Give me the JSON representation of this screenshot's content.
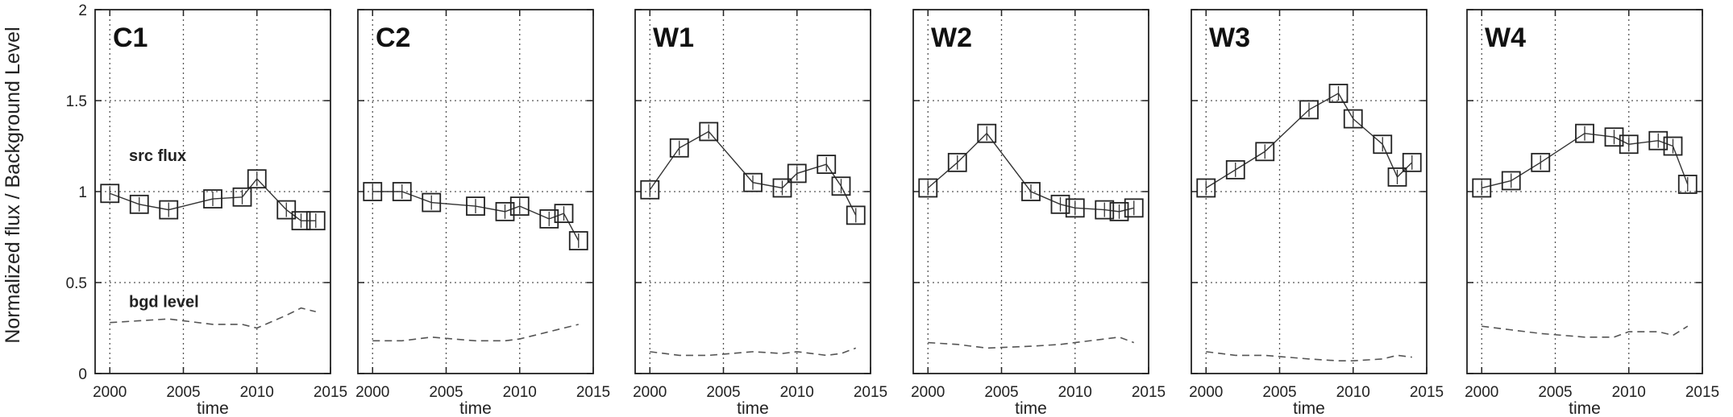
{
  "chart_data": {
    "type": "line",
    "ylabel": "Normalized flux / Background Level",
    "ylim": [
      0,
      2
    ],
    "y_ticks": [
      "0",
      "0.5",
      "1",
      "1.5",
      "2"
    ],
    "xlim": [
      1999,
      2015
    ],
    "x_ticks": [
      "2000",
      "2005",
      "2010",
      "2015"
    ],
    "grid": true,
    "annotations": [
      "src flux",
      "bgd level"
    ],
    "panels": [
      {
        "label": "C1",
        "xlabel": "time",
        "src_flux": {
          "x": [
            2000,
            2002,
            2004,
            2007,
            2009,
            2010,
            2012,
            2013,
            2014
          ],
          "y": [
            0.99,
            0.93,
            0.9,
            0.96,
            0.97,
            1.07,
            0.9,
            0.84,
            0.84
          ]
        },
        "bgd_level": {
          "x": [
            2000,
            2002,
            2004,
            2007,
            2009,
            2010,
            2012,
            2013,
            2014
          ],
          "y": [
            0.28,
            0.29,
            0.3,
            0.27,
            0.27,
            0.25,
            0.32,
            0.36,
            0.34
          ]
        }
      },
      {
        "label": "C2",
        "xlabel": "time",
        "src_flux": {
          "x": [
            2000,
            2002,
            2004,
            2007,
            2009,
            2010,
            2012,
            2013,
            2014
          ],
          "y": [
            1.0,
            1.0,
            0.94,
            0.92,
            0.89,
            0.92,
            0.85,
            0.88,
            0.73
          ]
        },
        "bgd_level": {
          "x": [
            2000,
            2002,
            2004,
            2007,
            2009,
            2010,
            2012,
            2013,
            2014
          ],
          "y": [
            0.18,
            0.18,
            0.2,
            0.18,
            0.18,
            0.19,
            0.23,
            0.25,
            0.27
          ]
        }
      },
      {
        "label": "W1",
        "xlabel": "time",
        "src_flux": {
          "x": [
            2000,
            2002,
            2004,
            2007,
            2009,
            2010,
            2012,
            2013,
            2014
          ],
          "y": [
            1.01,
            1.24,
            1.33,
            1.05,
            1.02,
            1.1,
            1.15,
            1.03,
            0.87
          ]
        },
        "bgd_level": {
          "x": [
            2000,
            2002,
            2004,
            2007,
            2009,
            2010,
            2012,
            2013,
            2014
          ],
          "y": [
            0.12,
            0.1,
            0.1,
            0.12,
            0.11,
            0.12,
            0.1,
            0.11,
            0.14
          ]
        }
      },
      {
        "label": "W2",
        "xlabel": "time",
        "src_flux": {
          "x": [
            2000,
            2002,
            2004,
            2007,
            2009,
            2010,
            2012,
            2013,
            2014
          ],
          "y": [
            1.02,
            1.16,
            1.32,
            1.0,
            0.93,
            0.91,
            0.9,
            0.89,
            0.91
          ]
        },
        "bgd_level": {
          "x": [
            2000,
            2002,
            2004,
            2007,
            2009,
            2010,
            2012,
            2013,
            2014
          ],
          "y": [
            0.17,
            0.16,
            0.14,
            0.15,
            0.16,
            0.17,
            0.19,
            0.2,
            0.17
          ]
        }
      },
      {
        "label": "W3",
        "xlabel": "time",
        "src_flux": {
          "x": [
            2000,
            2002,
            2004,
            2007,
            2009,
            2010,
            2012,
            2013,
            2014
          ],
          "y": [
            1.02,
            1.12,
            1.22,
            1.45,
            1.54,
            1.4,
            1.26,
            1.08,
            1.16
          ]
        },
        "bgd_level": {
          "x": [
            2000,
            2002,
            2004,
            2007,
            2009,
            2010,
            2012,
            2013,
            2014
          ],
          "y": [
            0.12,
            0.1,
            0.1,
            0.08,
            0.07,
            0.07,
            0.08,
            0.1,
            0.09
          ]
        }
      },
      {
        "label": "W4",
        "xlabel": "time",
        "src_flux": {
          "x": [
            2000,
            2002,
            2004,
            2007,
            2009,
            2010,
            2012,
            2013,
            2014
          ],
          "y": [
            1.02,
            1.06,
            1.16,
            1.32,
            1.3,
            1.26,
            1.28,
            1.25,
            1.04
          ]
        },
        "bgd_level": {
          "x": [
            2000,
            2002,
            2004,
            2007,
            2009,
            2010,
            2012,
            2013,
            2014
          ],
          "y": [
            0.26,
            0.24,
            0.22,
            0.2,
            0.2,
            0.23,
            0.23,
            0.21,
            0.26
          ]
        }
      }
    ]
  }
}
